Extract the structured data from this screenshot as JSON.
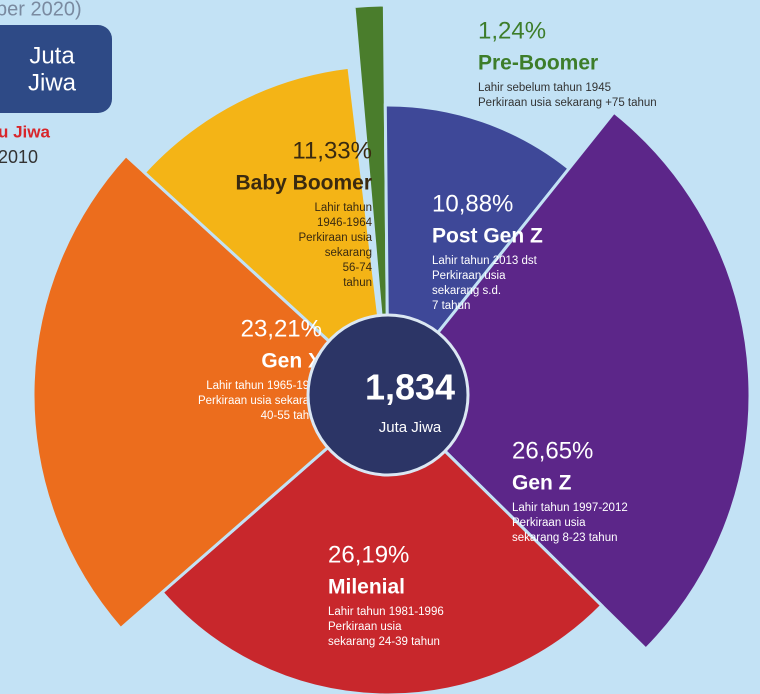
{
  "header": {
    "date_fragment": "ber 2020)",
    "box_lines": [
      "Juta",
      "Jiwa"
    ],
    "note_fragment": "u Jiwa",
    "note_year": "2010"
  },
  "chart_data": {
    "type": "pie",
    "categories": [
      "Pre-Boomer",
      "Post Gen Z",
      "Gen Z",
      "Milenial",
      "Gen X",
      "Baby Boomer"
    ],
    "values": [
      1.24,
      10.88,
      26.65,
      26.19,
      23.21,
      11.33
    ],
    "value_labels": [
      "1,24%",
      "10,88%",
      "26,65%",
      "26,19%",
      "23,21%",
      "11,33%"
    ],
    "colors": [
      "#4a7d2c",
      "#3e4898",
      "#5c2689",
      "#c8272c",
      "#ec6d1d",
      "#f4b416"
    ],
    "descriptions": [
      [
        "Lahir sebelum tahun 1945",
        "Perkiraan usia sekarang +75 tahun"
      ],
      [
        "Lahir tahun 2013 dst",
        "Perkiraan usia",
        "sekarang s.d.",
        "7 tahun"
      ],
      [
        "Lahir tahun 1997-2012",
        "Perkiraan usia",
        "sekarang 8-23 tahun"
      ],
      [
        "Lahir tahun 1981-1996",
        "Perkiraan usia",
        "sekarang 24-39 tahun"
      ],
      [
        "Lahir tahun 1965-1980",
        "Perkiraan usia sekarang",
        "40-55 tahun"
      ],
      [
        "Lahir tahun",
        "1946-1964",
        "Perkiraan usia",
        "sekarang",
        "56-74",
        "tahun"
      ]
    ],
    "center_value": "1,834",
    "center_unit": "Juta Jiwa"
  }
}
